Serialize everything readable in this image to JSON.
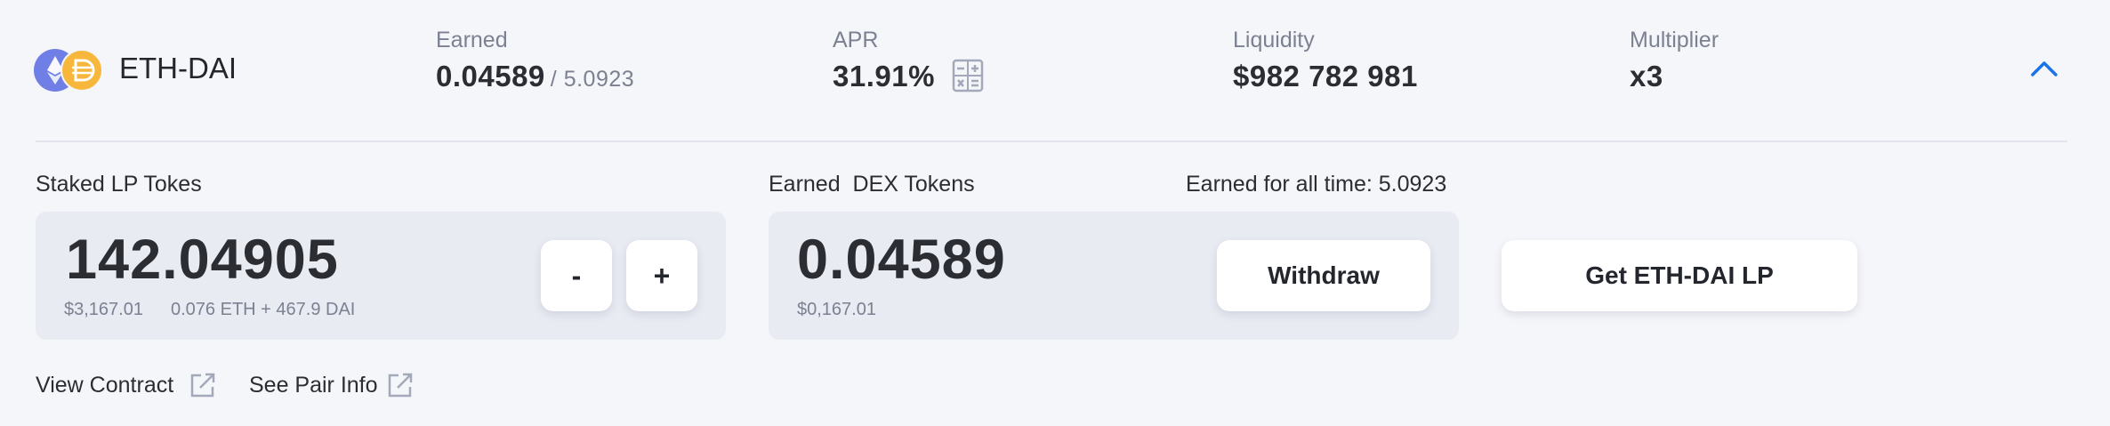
{
  "header": {
    "pair_name": "ETH-DAI",
    "icons": [
      "ethereum-icon",
      "dai-icon"
    ],
    "earned": {
      "label": "Earned",
      "value": "0.04589",
      "total": "/ 5.0923"
    },
    "apr": {
      "label": "APR",
      "value": "31.91%",
      "icon": "calculator-icon"
    },
    "liquidity": {
      "label": "Liquidity",
      "value": "$982 782 981"
    },
    "multiplier": {
      "label": "Multiplier",
      "value": "x3"
    },
    "collapse_icon": "chevron-up-icon"
  },
  "staked": {
    "label": "Staked LP Tokes",
    "amount": "142.04905",
    "usd": "$3,167.01",
    "composition": "0.076 ETH + 467.9 DAI",
    "minus_label": "-",
    "plus_label": "+"
  },
  "earned_dex": {
    "label": "Earned  DEX Tokens",
    "all_time": "Earned for all time: 5.0923",
    "amount": "0.04589",
    "usd": "$0,167.01",
    "withdraw_label": "Withdraw"
  },
  "get_lp_label": "Get ETH-DAI LP",
  "links": {
    "view_contract": "View Contract",
    "see_pair_info": "See Pair Info"
  },
  "colors": {
    "background": "#f5f6fa",
    "accent": "#1a73e8",
    "eth": "#6f7fe6",
    "dai": "#f6b73c"
  }
}
